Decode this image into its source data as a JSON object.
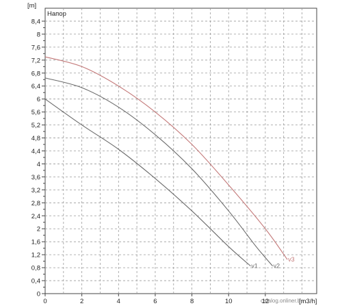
{
  "chart_data": {
    "type": "line",
    "title": "Напор",
    "xlabel": "[m3/h]",
    "ylabel": "[m]",
    "xlim": [
      0,
      14.8
    ],
    "ylim": [
      0,
      8.8
    ],
    "x_ticks": [
      0,
      2,
      4,
      6,
      8,
      10,
      12
    ],
    "x_tick_labels": [
      "0",
      "2",
      "4",
      "6",
      "8",
      "10",
      "12"
    ],
    "y_ticks": [
      0,
      0.4,
      0.8,
      1.2,
      1.6,
      2,
      2.4,
      2.8,
      3.2,
      3.6,
      4,
      4.4,
      4.8,
      5.2,
      5.6,
      6,
      6.4,
      6.8,
      7.2,
      7.6,
      8,
      8.4
    ],
    "y_tick_labels": [
      "0",
      "0,4",
      "0,8",
      "1,2",
      "1,6",
      "2",
      "2,4",
      "2,8",
      "3,2",
      "3,6",
      "4",
      "4,4",
      "4,8",
      "5,2",
      "5,6",
      "6",
      "6,4",
      "6,8",
      "7,2",
      "7,6",
      "8",
      "8,4"
    ],
    "grid": true,
    "series": [
      {
        "name": "v1",
        "color": "#6b6b6b",
        "x": [
          0,
          2,
          4,
          6,
          8,
          10,
          11.2
        ],
        "y": [
          6.0,
          5.2,
          4.45,
          3.55,
          2.55,
          1.45,
          0.85
        ]
      },
      {
        "name": "v2",
        "color": "#6b6b6b",
        "x": [
          0,
          2,
          4,
          6,
          8,
          10,
          11.5,
          12.4
        ],
        "y": [
          6.65,
          6.35,
          5.75,
          4.9,
          3.85,
          2.55,
          1.45,
          0.85
        ]
      },
      {
        "name": "v3",
        "color": "#c47a7a",
        "x": [
          0,
          2,
          4,
          6,
          8,
          10,
          12,
          13.2
        ],
        "y": [
          7.3,
          7.0,
          6.4,
          5.6,
          4.6,
          3.35,
          2.0,
          1.05
        ]
      }
    ],
    "watermark": "catalog.onliner.by"
  }
}
